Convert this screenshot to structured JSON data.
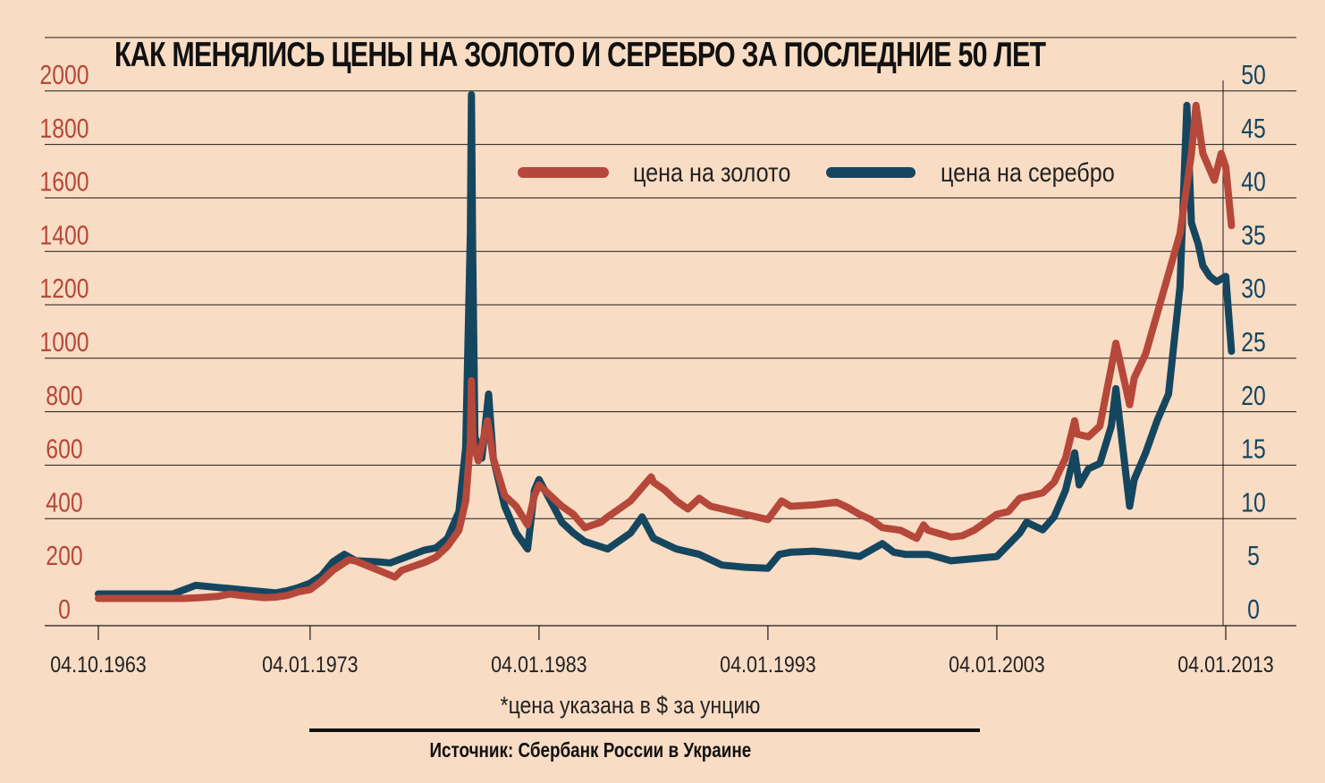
{
  "title": "КАК МЕНЯЛИСЬ ЦЕНЫ НА ЗОЛОТО И СЕРЕБРО ЗА ПОСЛЕДНИЕ 50 ЛЕТ",
  "footnote": "*цена указана в $ за унцию",
  "source": "Источник: Сбербанк России в Украине",
  "colors": {
    "gold": "#b5483a",
    "silver": "#15465f",
    "background": "#f9dcc4",
    "grid": "#1a1a1a"
  },
  "chart_data": {
    "type": "line",
    "x_tick_labels": [
      "04.10.1963",
      "04.01.1973",
      "04.01.1983",
      "04.01.1993",
      "04.01.2003",
      "04.01.2013"
    ],
    "x_tick_years": [
      1963.75,
      1973.0,
      1983.0,
      1993.0,
      2003.0,
      2013.0
    ],
    "xlim": [
      1963.75,
      2013.25
    ],
    "y_left": {
      "ticks": [
        0,
        200,
        400,
        600,
        800,
        1000,
        1200,
        1400,
        1600,
        1800,
        2000
      ],
      "lim": [
        0,
        2000
      ]
    },
    "y_right": {
      "ticks": [
        0,
        5,
        10,
        15,
        20,
        25,
        30,
        35,
        40,
        45,
        50
      ],
      "lim": [
        0,
        50
      ]
    },
    "grid": "horizontal",
    "legend_position": "top-center",
    "series": [
      {
        "name": "цена на золото",
        "axis": "left",
        "points": [
          [
            1963.75,
            35
          ],
          [
            1967.5,
            35
          ],
          [
            1968.2,
            38
          ],
          [
            1969.0,
            43
          ],
          [
            1969.5,
            52
          ],
          [
            1970.0,
            46
          ],
          [
            1971.0,
            38
          ],
          [
            1971.5,
            40
          ],
          [
            1972.0,
            46
          ],
          [
            1972.5,
            60
          ],
          [
            1973.0,
            68
          ],
          [
            1973.5,
            100
          ],
          [
            1974.0,
            140
          ],
          [
            1974.7,
            180
          ],
          [
            1975.0,
            175
          ],
          [
            1976.0,
            140
          ],
          [
            1976.7,
            115
          ],
          [
            1977.0,
            140
          ],
          [
            1978.0,
            170
          ],
          [
            1978.5,
            190
          ],
          [
            1979.0,
            230
          ],
          [
            1979.5,
            290
          ],
          [
            1979.8,
            400
          ],
          [
            1980.0,
            620
          ],
          [
            1980.05,
            850
          ],
          [
            1980.08,
            730
          ],
          [
            1980.12,
            620
          ],
          [
            1980.35,
            550
          ],
          [
            1980.75,
            700
          ],
          [
            1981.0,
            560
          ],
          [
            1981.5,
            420
          ],
          [
            1982.0,
            380
          ],
          [
            1982.5,
            310
          ],
          [
            1982.8,
            420
          ],
          [
            1983.0,
            460
          ],
          [
            1983.5,
            420
          ],
          [
            1984.0,
            380
          ],
          [
            1984.5,
            350
          ],
          [
            1985.0,
            300
          ],
          [
            1985.7,
            320
          ],
          [
            1986.0,
            340
          ],
          [
            1987.0,
            400
          ],
          [
            1987.9,
            490
          ],
          [
            1988.0,
            470
          ],
          [
            1988.5,
            440
          ],
          [
            1989.0,
            400
          ],
          [
            1989.5,
            370
          ],
          [
            1990.0,
            410
          ],
          [
            1990.5,
            380
          ],
          [
            1991.0,
            370
          ],
          [
            1991.5,
            360
          ],
          [
            1992.0,
            350
          ],
          [
            1992.5,
            340
          ],
          [
            1993.0,
            330
          ],
          [
            1993.6,
            400
          ],
          [
            1994.0,
            380
          ],
          [
            1995.0,
            385
          ],
          [
            1996.0,
            395
          ],
          [
            1996.5,
            375
          ],
          [
            1997.0,
            350
          ],
          [
            1997.5,
            330
          ],
          [
            1998.0,
            300
          ],
          [
            1998.8,
            290
          ],
          [
            1999.5,
            260
          ],
          [
            1999.8,
            310
          ],
          [
            2000.0,
            290
          ],
          [
            2001.0,
            265
          ],
          [
            2001.5,
            270
          ],
          [
            2002.0,
            290
          ],
          [
            2002.5,
            320
          ],
          [
            2003.0,
            350
          ],
          [
            2003.5,
            360
          ],
          [
            2004.0,
            410
          ],
          [
            2005.0,
            430
          ],
          [
            2005.5,
            470
          ],
          [
            2006.0,
            560
          ],
          [
            2006.4,
            700
          ],
          [
            2006.5,
            650
          ],
          [
            2007.0,
            640
          ],
          [
            2007.5,
            680
          ],
          [
            2008.0,
            900
          ],
          [
            2008.2,
            990
          ],
          [
            2008.8,
            760
          ],
          [
            2009.0,
            860
          ],
          [
            2009.5,
            950
          ],
          [
            2010.0,
            1100
          ],
          [
            2010.5,
            1250
          ],
          [
            2011.0,
            1400
          ],
          [
            2011.5,
            1700
          ],
          [
            2011.7,
            1880
          ],
          [
            2012.0,
            1700
          ],
          [
            2012.5,
            1600
          ],
          [
            2012.8,
            1700
          ],
          [
            2013.0,
            1650
          ],
          [
            2013.25,
            1430
          ]
        ]
      },
      {
        "name": "цена на серебро",
        "axis": "right",
        "points": [
          [
            1963.75,
            1.3
          ],
          [
            1967.0,
            1.3
          ],
          [
            1967.5,
            1.7
          ],
          [
            1968.0,
            2.1
          ],
          [
            1969.0,
            1.9
          ],
          [
            1970.0,
            1.7
          ],
          [
            1971.0,
            1.5
          ],
          [
            1971.5,
            1.4
          ],
          [
            1972.0,
            1.6
          ],
          [
            1972.5,
            1.9
          ],
          [
            1973.0,
            2.3
          ],
          [
            1973.5,
            3.0
          ],
          [
            1974.0,
            4.3
          ],
          [
            1974.5,
            5.0
          ],
          [
            1975.0,
            4.4
          ],
          [
            1976.0,
            4.3
          ],
          [
            1976.5,
            4.2
          ],
          [
            1977.0,
            4.6
          ],
          [
            1978.0,
            5.4
          ],
          [
            1978.5,
            5.6
          ],
          [
            1979.0,
            6.5
          ],
          [
            1979.5,
            9.0
          ],
          [
            1979.8,
            15.0
          ],
          [
            1980.0,
            35.0
          ],
          [
            1980.05,
            48.0
          ],
          [
            1980.1,
            34.0
          ],
          [
            1980.2,
            16.0
          ],
          [
            1980.5,
            14.0
          ],
          [
            1980.8,
            20.0
          ],
          [
            1981.0,
            14.0
          ],
          [
            1981.5,
            9.5
          ],
          [
            1982.0,
            7.0
          ],
          [
            1982.5,
            5.5
          ],
          [
            1982.8,
            11.0
          ],
          [
            1983.0,
            12.0
          ],
          [
            1983.5,
            10.0
          ],
          [
            1984.0,
            8.0
          ],
          [
            1984.5,
            7.0
          ],
          [
            1985.0,
            6.2
          ],
          [
            1986.0,
            5.5
          ],
          [
            1987.0,
            7.0
          ],
          [
            1987.5,
            8.5
          ],
          [
            1988.0,
            6.5
          ],
          [
            1989.0,
            5.5
          ],
          [
            1990.0,
            5.0
          ],
          [
            1991.0,
            4.0
          ],
          [
            1992.0,
            3.8
          ],
          [
            1993.0,
            3.7
          ],
          [
            1993.5,
            5.0
          ],
          [
            1994.0,
            5.2
          ],
          [
            1995.0,
            5.3
          ],
          [
            1996.0,
            5.1
          ],
          [
            1997.0,
            4.8
          ],
          [
            1998.0,
            6.0
          ],
          [
            1998.5,
            5.2
          ],
          [
            1999.0,
            5.0
          ],
          [
            2000.0,
            5.0
          ],
          [
            2001.0,
            4.4
          ],
          [
            2002.0,
            4.6
          ],
          [
            2003.0,
            4.8
          ],
          [
            2004.0,
            7.0
          ],
          [
            2004.3,
            8.0
          ],
          [
            2005.0,
            7.3
          ],
          [
            2005.5,
            8.5
          ],
          [
            2006.0,
            11.0
          ],
          [
            2006.4,
            14.5
          ],
          [
            2006.6,
            11.5
          ],
          [
            2007.0,
            13.0
          ],
          [
            2007.5,
            13.5
          ],
          [
            2008.0,
            17.0
          ],
          [
            2008.2,
            20.5
          ],
          [
            2008.8,
            9.5
          ],
          [
            2009.0,
            12.0
          ],
          [
            2009.5,
            14.5
          ],
          [
            2010.0,
            17.5
          ],
          [
            2010.5,
            20.0
          ],
          [
            2011.0,
            30.0
          ],
          [
            2011.3,
            47.0
          ],
          [
            2011.5,
            36.0
          ],
          [
            2011.8,
            34.0
          ],
          [
            2012.0,
            32.0
          ],
          [
            2012.3,
            31.0
          ],
          [
            2012.6,
            30.5
          ],
          [
            2013.0,
            31.0
          ],
          [
            2013.25,
            24.0
          ]
        ]
      }
    ]
  }
}
